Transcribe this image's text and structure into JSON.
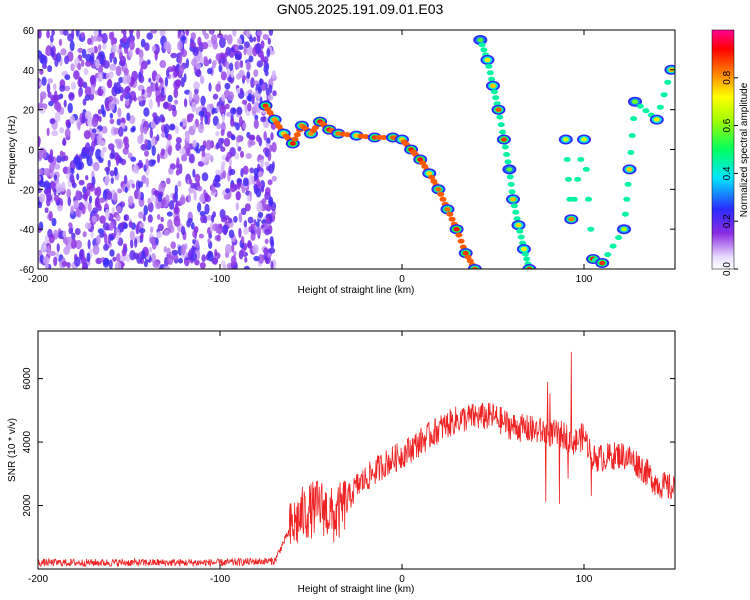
{
  "figure": {
    "title": "GN05.2025.191.09.01.E03"
  },
  "chart_data": [
    {
      "type": "heatmap",
      "xlabel": "Height of straight line (km)",
      "ylabel": "Frequency (Hz)",
      "xlim": [
        -200,
        150
      ],
      "ylim": [
        -60,
        60
      ],
      "xticks": [
        -200,
        -100,
        0,
        100
      ],
      "yticks": [
        -60,
        -40,
        -20,
        0,
        20,
        40,
        60
      ],
      "colorbar": {
        "label": "Normalized spectral amplitude",
        "range": [
          0,
          1
        ],
        "ticks": [
          0,
          0.2,
          0.4,
          0.6,
          0.8
        ],
        "colormap": "rainbow (white-purple-blue-cyan-green-yellow-red-magenta)"
      },
      "features": {
        "noise_region_x": [
          -200,
          -70
        ],
        "main_track": [
          {
            "x": -75,
            "y": 22
          },
          {
            "x": -70,
            "y": 15
          },
          {
            "x": -65,
            "y": 8
          },
          {
            "x": -60,
            "y": 3
          },
          {
            "x": -55,
            "y": 12
          },
          {
            "x": -50,
            "y": 8
          },
          {
            "x": -45,
            "y": 14
          },
          {
            "x": -40,
            "y": 10
          },
          {
            "x": -35,
            "y": 8
          },
          {
            "x": -25,
            "y": 7
          },
          {
            "x": -15,
            "y": 6
          },
          {
            "x": -5,
            "y": 6
          },
          {
            "x": 0,
            "y": 5
          },
          {
            "x": 5,
            "y": 0
          },
          {
            "x": 10,
            "y": -5
          },
          {
            "x": 15,
            "y": -12
          },
          {
            "x": 20,
            "y": -20
          },
          {
            "x": 25,
            "y": -30
          },
          {
            "x": 30,
            "y": -40
          },
          {
            "x": 35,
            "y": -52
          },
          {
            "x": 40,
            "y": -60
          }
        ],
        "alias_track_1": [
          {
            "x": 43,
            "y": 55
          },
          {
            "x": 47,
            "y": 45
          },
          {
            "x": 50,
            "y": 32
          },
          {
            "x": 53,
            "y": 20
          },
          {
            "x": 56,
            "y": 5
          },
          {
            "x": 59,
            "y": -10
          },
          {
            "x": 61,
            "y": -25
          },
          {
            "x": 64,
            "y": -38
          },
          {
            "x": 67,
            "y": -50
          },
          {
            "x": 70,
            "y": -60
          }
        ],
        "alias_track_2": [
          {
            "x": 90,
            "y": 5
          },
          {
            "x": 93,
            "y": -35
          },
          {
            "x": 100,
            "y": 5
          },
          {
            "x": 105,
            "y": -55
          },
          {
            "x": 110,
            "y": -57
          },
          {
            "x": 122,
            "y": -40
          },
          {
            "x": 125,
            "y": -10
          },
          {
            "x": 128,
            "y": 24
          },
          {
            "x": 140,
            "y": 15
          },
          {
            "x": 148,
            "y": 40
          }
        ]
      }
    },
    {
      "type": "line",
      "xlabel": "Height of straight line (km)",
      "ylabel": "SNR (10 * v/v)",
      "xlim": [
        -200,
        150
      ],
      "ylim": [
        0,
        7500
      ],
      "xticks": [
        -200,
        -100,
        0,
        100
      ],
      "yticks": [
        2000,
        4000,
        6000
      ],
      "color": "#ee2222",
      "series": [
        {
          "x": [
            -200,
            -150,
            -100,
            -70,
            -62,
            -55,
            -45,
            -37,
            -32,
            -25,
            -10,
            0,
            10,
            20,
            30,
            40,
            50,
            60,
            70,
            80,
            90,
            95,
            100,
            105,
            110,
            120,
            125,
            130,
            140,
            150
          ],
          "values": [
            200,
            200,
            200,
            250,
            1200,
            1700,
            2000,
            1600,
            2000,
            2600,
            3300,
            3600,
            4000,
            4400,
            4700,
            4800,
            4800,
            4500,
            4400,
            4300,
            4200,
            4000,
            4200,
            3500,
            3500,
            3600,
            3500,
            3300,
            2700,
            2500
          ]
        }
      ]
    }
  ]
}
